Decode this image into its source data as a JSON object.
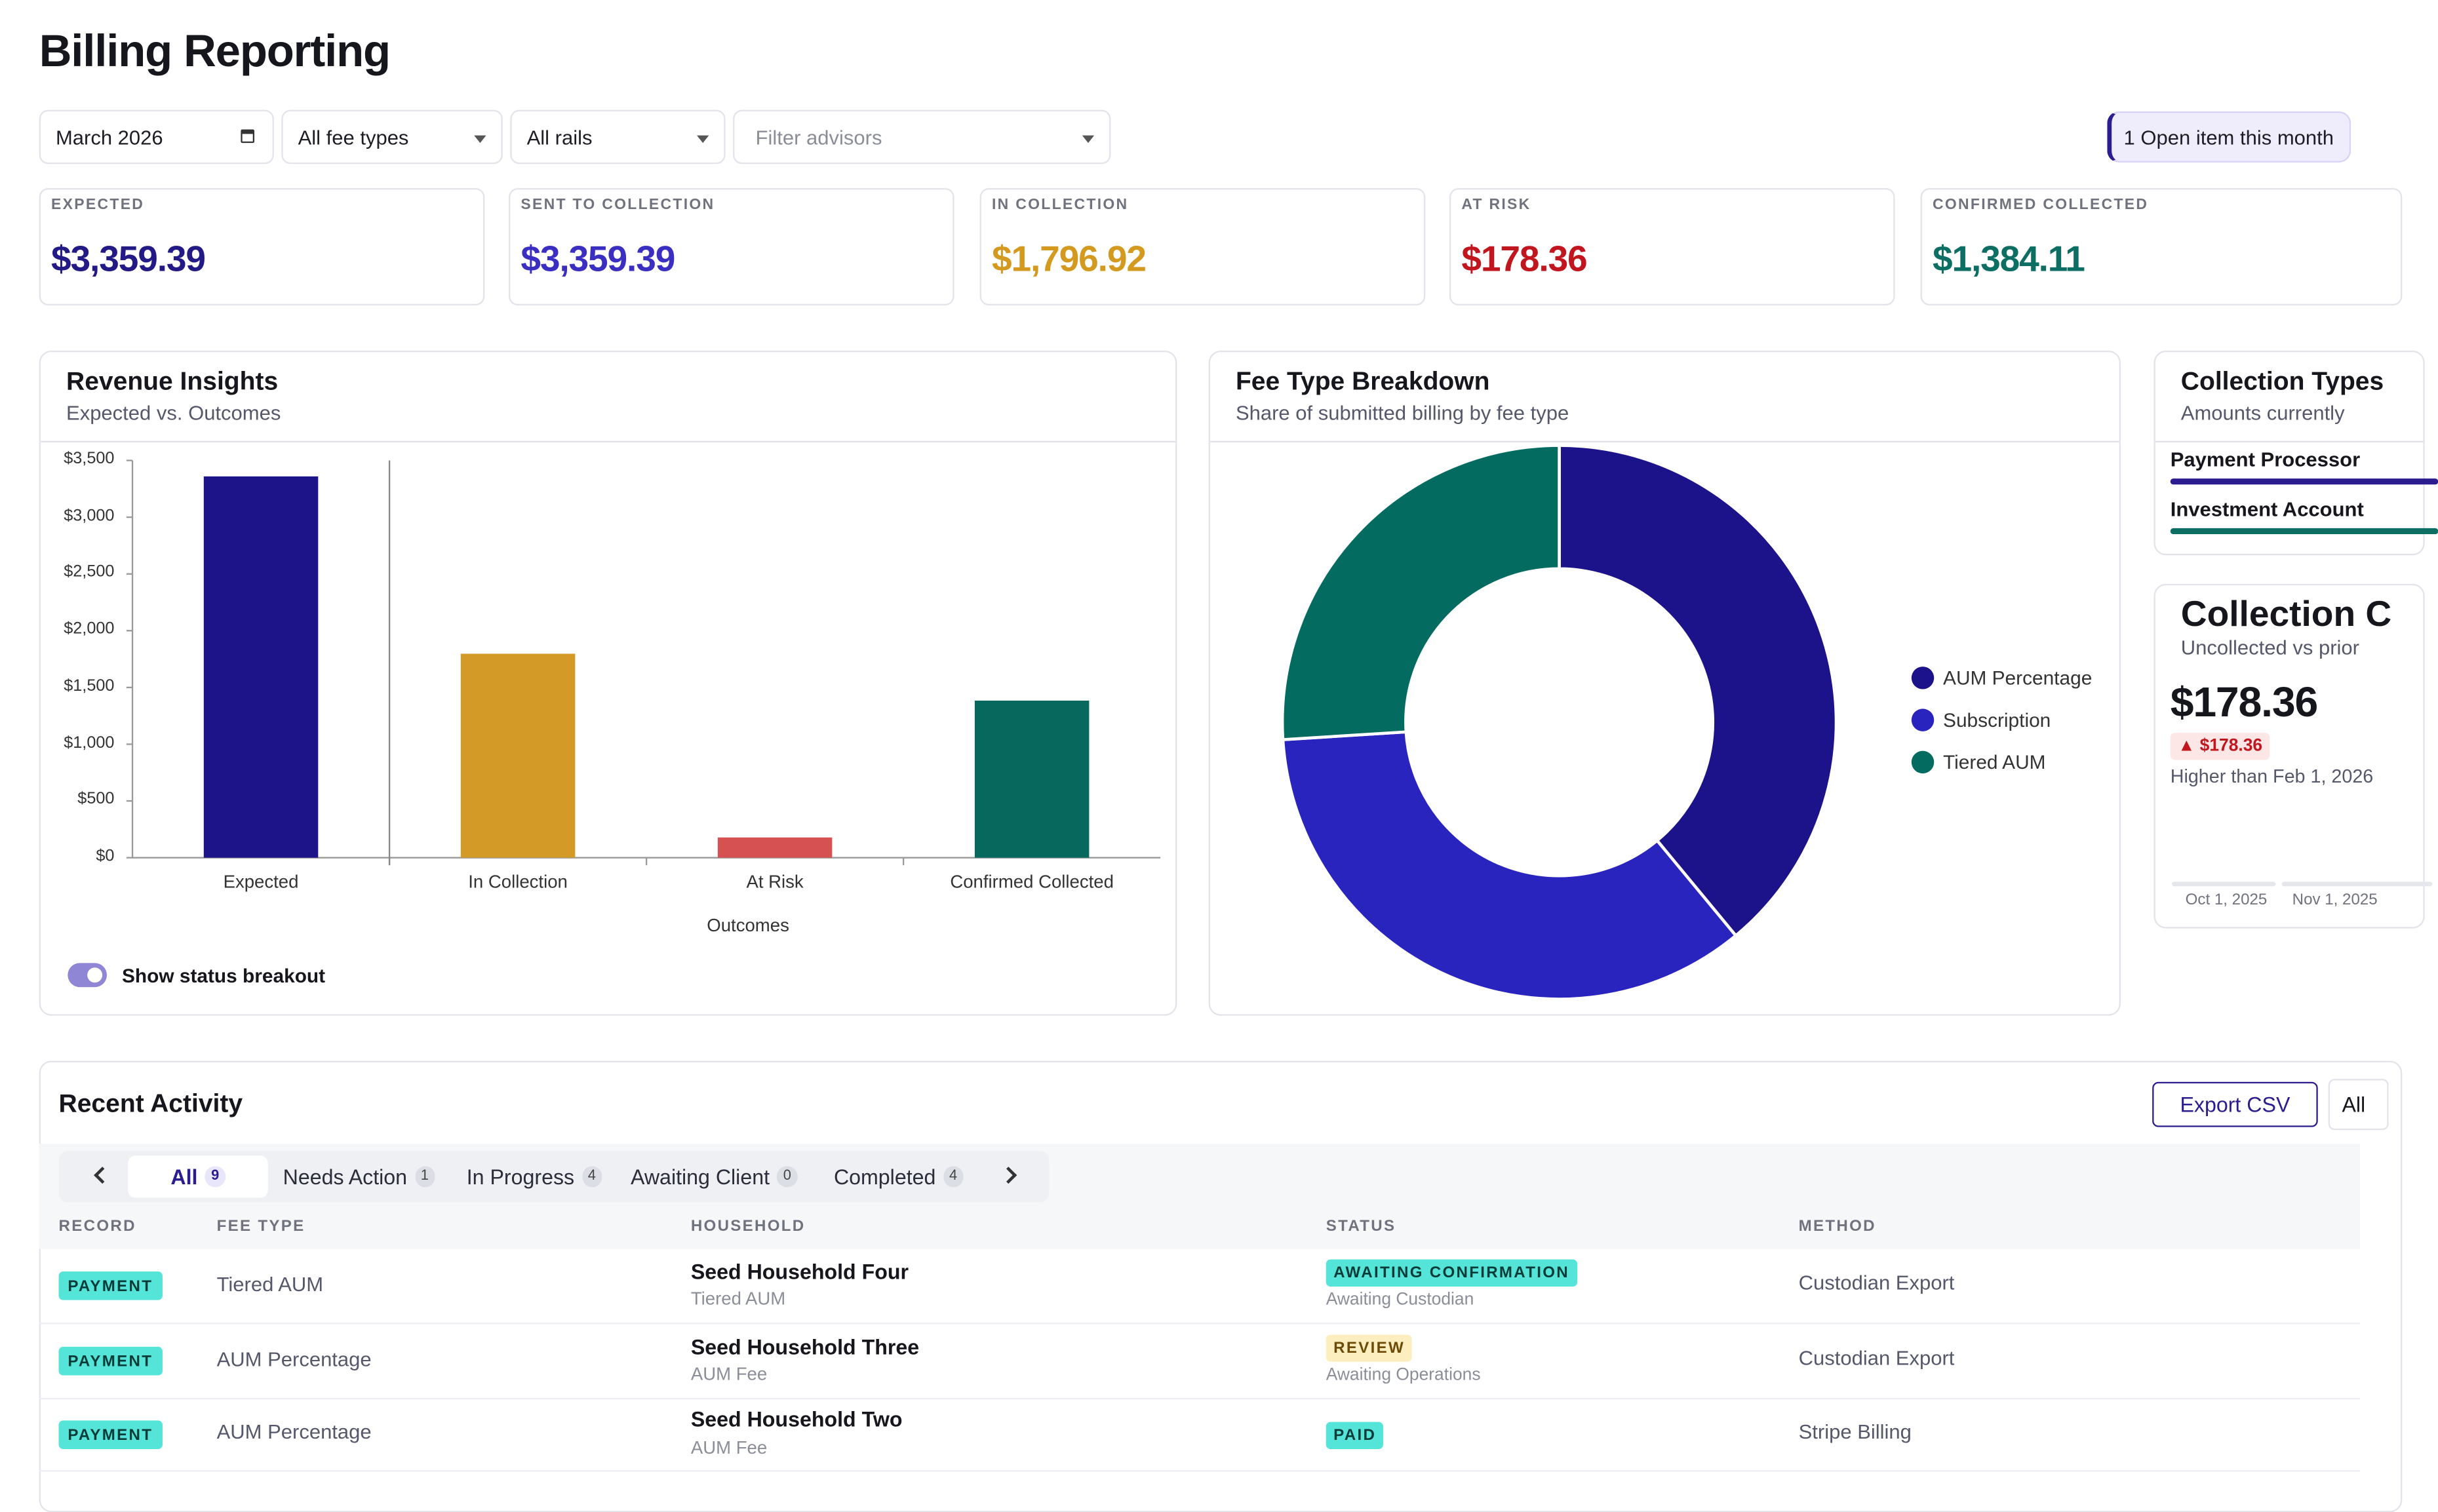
{
  "page": {
    "title": "Billing Reporting"
  },
  "filters": {
    "month": "March 2026",
    "fee_type": "All fee types",
    "rails": "All rails",
    "advisors_placeholder": "Filter advisors"
  },
  "open_items": {
    "label": "1 Open item this month"
  },
  "kpis": [
    {
      "label": "EXPECTED",
      "value": "$3,359.39",
      "color": "#231a86"
    },
    {
      "label": "SENT TO COLLECTION",
      "value": "$3,359.39",
      "color": "#3a2fc0"
    },
    {
      "label": "IN COLLECTION",
      "value": "$1,796.92",
      "color": "#d49a1f"
    },
    {
      "label": "AT RISK",
      "value": "$178.36",
      "color": "#c2161f"
    },
    {
      "label": "CONFIRMED COLLECTED",
      "value": "$1,384.11",
      "color": "#0d6e63"
    }
  ],
  "revenue": {
    "title": "Revenue Insights",
    "subtitle": "Expected vs. Outcomes",
    "toggle_label": "Show status breakout"
  },
  "chart_data": [
    {
      "type": "bar",
      "categories": [
        "Expected",
        "In Collection",
        "At Risk",
        "Confirmed Collected"
      ],
      "values": [
        3359.39,
        1796.92,
        178.36,
        1384.11
      ],
      "colors": [
        "#1e1489",
        "#d49a28",
        "#d65252",
        "#07695e"
      ],
      "xlabel": "Outcomes",
      "ylabel": "",
      "yticks": [
        "$0",
        "$500",
        "$1,000",
        "$1,500",
        "$2,000",
        "$2,500",
        "$3,000",
        "$3,500"
      ],
      "ylim": [
        0,
        3500
      ]
    },
    {
      "type": "pie",
      "title": "Fee Type Breakdown",
      "subtitle": "Share of submitted billing by fee type",
      "categories": [
        "AUM Percentage",
        "Subscription",
        "Tiered AUM"
      ],
      "values": [
        39,
        35,
        26
      ],
      "colors": [
        "#1c138a",
        "#2a24bf",
        "#036b60"
      ]
    }
  ],
  "collection_types": {
    "title": "Collection Types",
    "subtitle": "Amounts currently",
    "items": [
      {
        "label": "Payment Processor",
        "color": "#2b1d8f"
      },
      {
        "label": "Investment Account",
        "color": "#0d6e63"
      }
    ]
  },
  "collection_card": {
    "title": "Collection C",
    "subtitle": "Uncollected vs prior",
    "value": "$178.36",
    "delta": "▲ $178.36",
    "note": "Higher than Feb 1, 2026",
    "axis": [
      "Oct 1, 2025",
      "Nov 1, 2025"
    ]
  },
  "activity": {
    "title": "Recent Activity",
    "export_label": "Export CSV",
    "all_label": "All",
    "tabs": [
      {
        "label": "All",
        "count": "9"
      },
      {
        "label": "Needs Action",
        "count": "1"
      },
      {
        "label": "In Progress",
        "count": "4"
      },
      {
        "label": "Awaiting Client",
        "count": "0"
      },
      {
        "label": "Completed",
        "count": "4"
      }
    ],
    "columns": [
      "RECORD",
      "FEE TYPE",
      "HOUSEHOLD",
      "STATUS",
      "METHOD"
    ],
    "rows": [
      {
        "record": "PAYMENT",
        "fee_type": "Tiered AUM",
        "household": "Seed Household Four",
        "household_sub": "Tiered AUM",
        "status": "AWAITING CONFIRMATION",
        "status_sub": "Awaiting Custodian",
        "method": "Custodian Export"
      },
      {
        "record": "PAYMENT",
        "fee_type": "AUM Percentage",
        "household": "Seed Household Three",
        "household_sub": "AUM Fee",
        "status": "REVIEW",
        "status_sub": "Awaiting Operations",
        "method": "Custodian Export"
      },
      {
        "record": "PAYMENT",
        "fee_type": "AUM Percentage",
        "household": "Seed Household Two",
        "household_sub": "AUM Fee",
        "status": "PAID",
        "status_sub": "",
        "method": "Stripe Billing"
      }
    ]
  }
}
